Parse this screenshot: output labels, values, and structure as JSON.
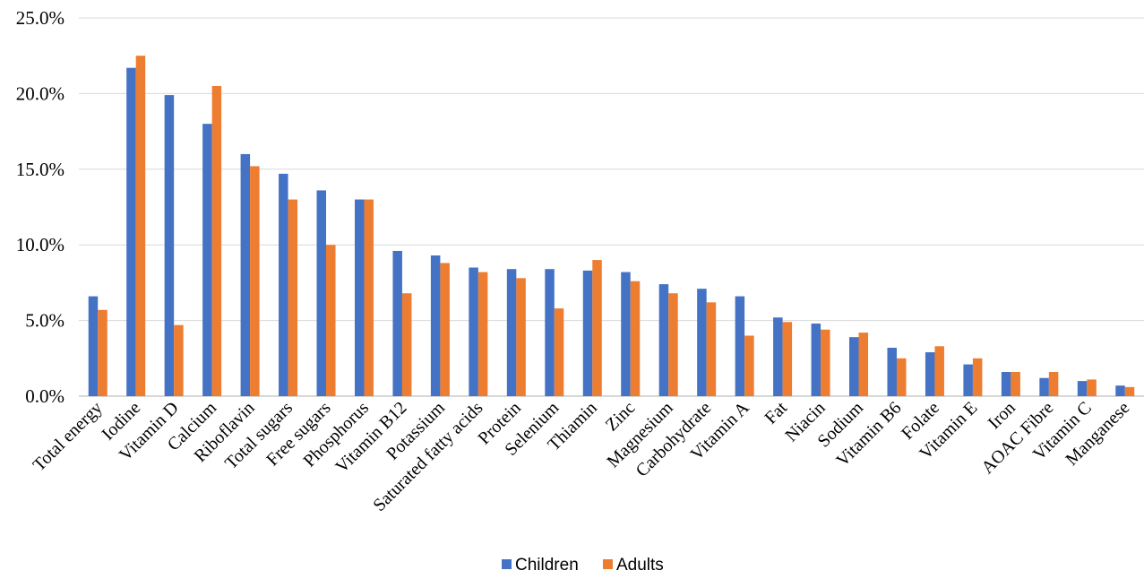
{
  "chart_data": {
    "type": "bar",
    "title": "",
    "xlabel": "",
    "ylabel": "",
    "ylim": [
      0,
      25
    ],
    "y_ticks": [
      "0.0%",
      "5.0%",
      "10.0%",
      "15.0%",
      "20.0%",
      "25.0%"
    ],
    "y_tick_values": [
      0,
      5,
      10,
      15,
      20,
      25
    ],
    "grid": true,
    "legend_position": "bottom",
    "categories": [
      "Total energy",
      "Iodine",
      "Vitamin D",
      "Calcium",
      "Riboflavin",
      "Total sugars",
      "Free sugars",
      "Phosphorus",
      "Vitamin B12",
      "Potassium",
      "Saturated fatty acids",
      "Protein",
      "Selenium",
      "Thiamin",
      "Zinc",
      "Magnesium",
      "Carbohydrate",
      "Vitamin A",
      "Fat",
      "Niacin",
      "Sodium",
      "Vitamin B6",
      "Folate",
      "Vitamin E",
      "Iron",
      "AOAC Fibre",
      "Vitamin C",
      "Manganese"
    ],
    "series": [
      {
        "name": "Children",
        "color": "#4472c4",
        "values": [
          6.6,
          21.7,
          19.9,
          18.0,
          16.0,
          14.7,
          13.6,
          13.0,
          9.6,
          9.3,
          8.5,
          8.4,
          8.4,
          8.3,
          8.2,
          7.4,
          7.1,
          6.6,
          5.2,
          4.8,
          3.9,
          3.2,
          2.9,
          2.1,
          1.6,
          1.2,
          1.0,
          0.7
        ]
      },
      {
        "name": "Adults",
        "color": "#ed7d31",
        "values": [
          5.7,
          22.5,
          4.7,
          20.5,
          15.2,
          13.0,
          10.0,
          13.0,
          6.8,
          8.8,
          8.2,
          7.8,
          5.8,
          9.0,
          7.6,
          6.8,
          6.2,
          4.0,
          4.9,
          4.4,
          4.2,
          2.5,
          3.3,
          2.5,
          1.6,
          1.6,
          1.1,
          0.6
        ]
      }
    ]
  }
}
